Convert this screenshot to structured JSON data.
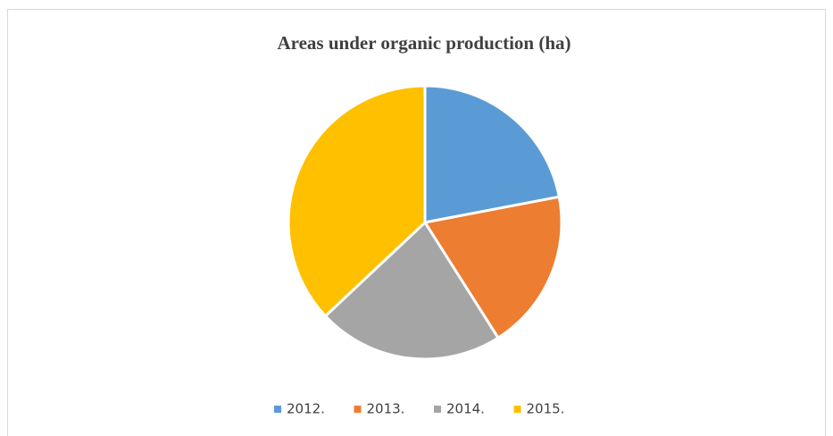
{
  "chart_data": {
    "type": "pie",
    "title": "Areas under organic production (ha)",
    "categories": [
      "2012.",
      "2013.",
      "2014.",
      "2015."
    ],
    "values": [
      22,
      19,
      22,
      37
    ],
    "colors": [
      "#5b9bd5",
      "#ed7d31",
      "#a5a5a5",
      "#ffc000"
    ],
    "legend": "bottom"
  }
}
